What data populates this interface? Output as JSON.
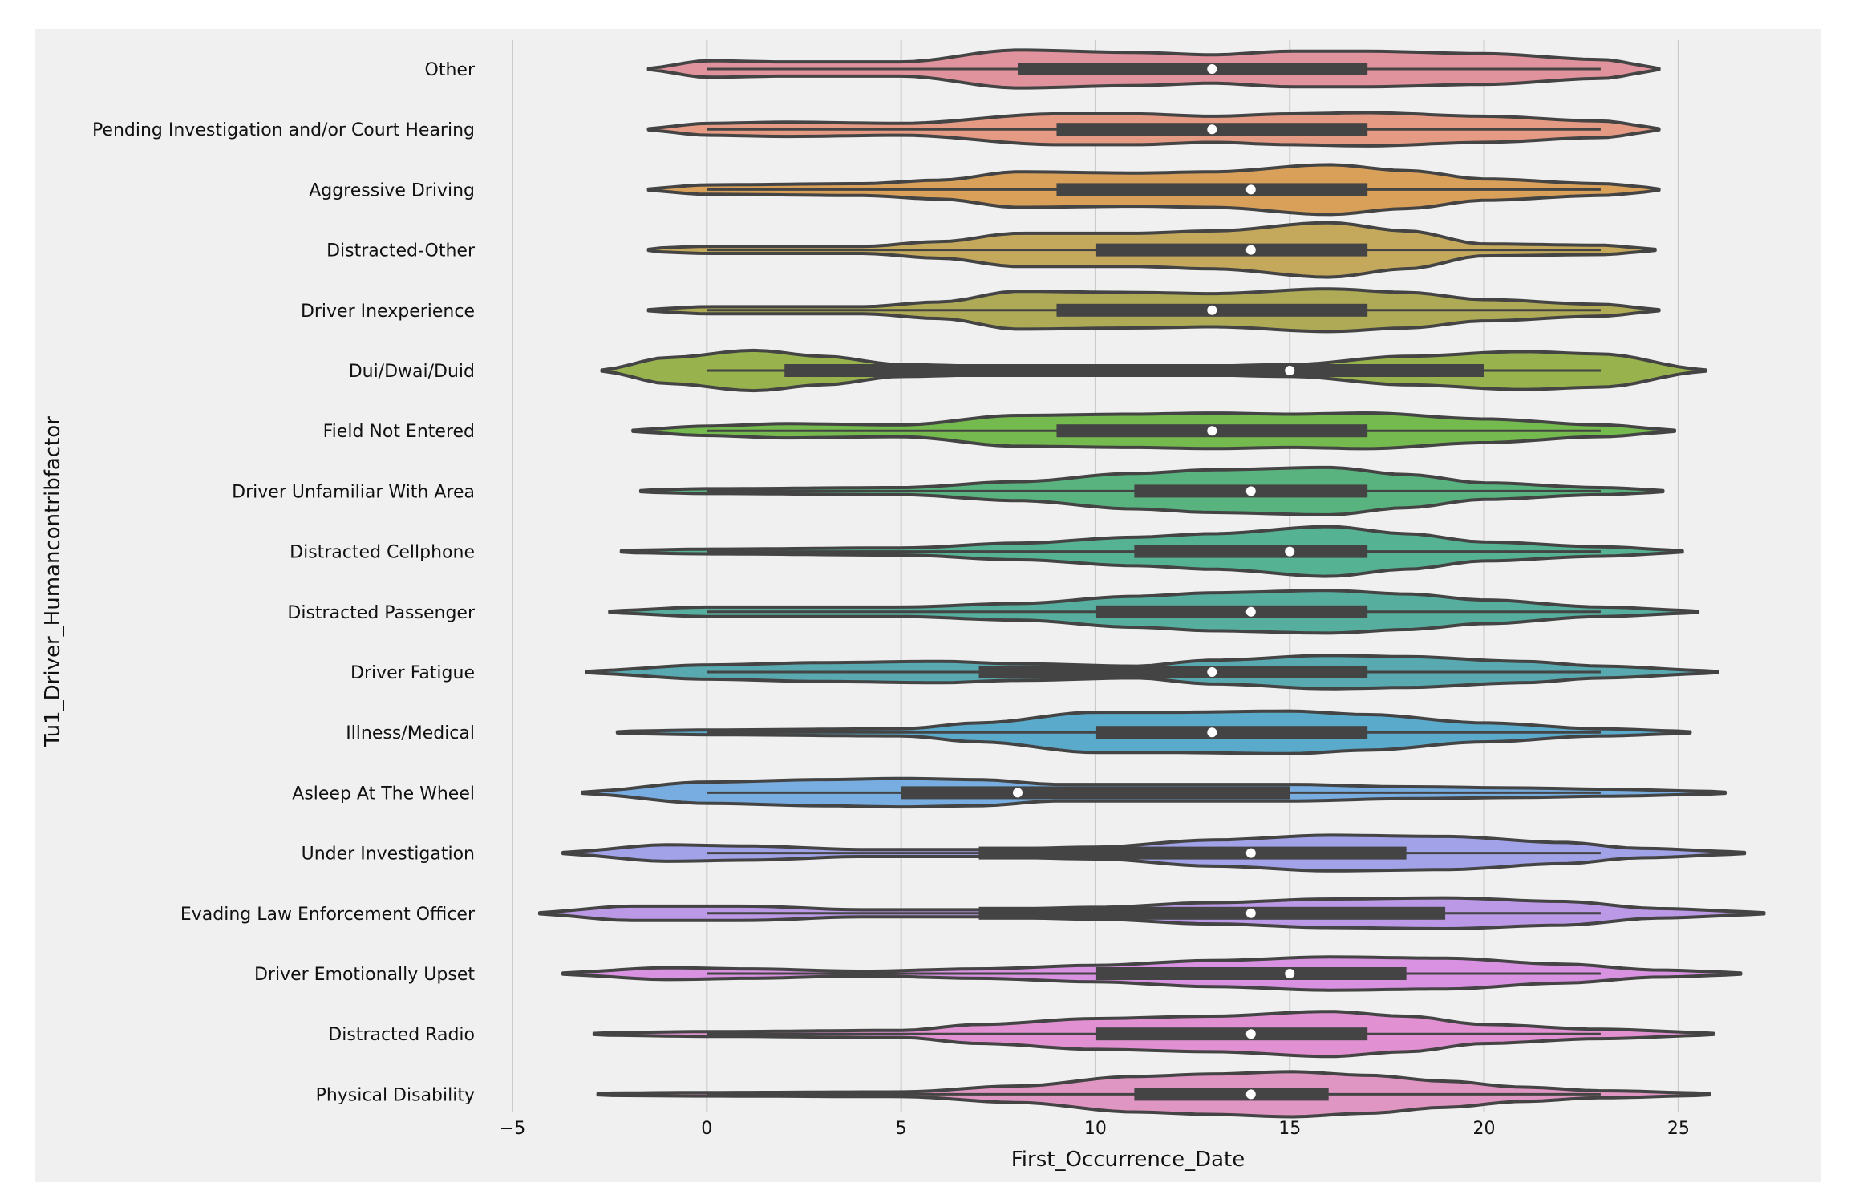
{
  "chart_data": {
    "type": "violin",
    "xlabel": "First_Occurrence_Date",
    "ylabel": "Tu1_Driver_Humancontribfactor",
    "xlim": [
      -5,
      27.5
    ],
    "xticks": [
      -5,
      0,
      5,
      10,
      15,
      20,
      25
    ],
    "xtick_labels": [
      "−5",
      "0",
      "5",
      "10",
      "15",
      "20",
      "25"
    ],
    "grid": "vertical",
    "orientation": "horizontal",
    "categories": [
      {
        "name": "Other",
        "color": "#e0939c",
        "min": -1.5,
        "max": 24.5,
        "q1": 8,
        "median": 13,
        "q3": 17,
        "whisker_low": 0,
        "whisker_high": 23,
        "density": [
          [
            -1.5,
            0.02
          ],
          [
            0,
            0.14
          ],
          [
            2,
            0.12
          ],
          [
            5,
            0.12
          ],
          [
            8,
            0.32
          ],
          [
            11,
            0.28
          ],
          [
            13,
            0.24
          ],
          [
            15,
            0.3
          ],
          [
            17,
            0.3
          ],
          [
            20,
            0.26
          ],
          [
            23,
            0.16
          ],
          [
            24.5,
            0.03
          ]
        ]
      },
      {
        "name": "Pending Investigation and/or Court Hearing",
        "color": "#e59a84",
        "min": -1.5,
        "max": 24.5,
        "q1": 9,
        "median": 13,
        "q3": 17,
        "whisker_low": 0,
        "whisker_high": 23,
        "density": [
          [
            -1.5,
            0.02
          ],
          [
            0,
            0.1
          ],
          [
            2,
            0.12
          ],
          [
            5,
            0.1
          ],
          [
            9,
            0.26
          ],
          [
            11,
            0.26
          ],
          [
            13,
            0.22
          ],
          [
            15,
            0.26
          ],
          [
            17,
            0.28
          ],
          [
            20,
            0.22
          ],
          [
            23,
            0.14
          ],
          [
            24.5,
            0.03
          ]
        ]
      },
      {
        "name": "Aggressive Driving",
        "color": "#d9a05a",
        "min": -1.5,
        "max": 24.5,
        "q1": 9,
        "median": 14,
        "q3": 17,
        "whisker_low": 0,
        "whisker_high": 23,
        "density": [
          [
            -1.5,
            0.02
          ],
          [
            0,
            0.08
          ],
          [
            4,
            0.1
          ],
          [
            6,
            0.16
          ],
          [
            8,
            0.3
          ],
          [
            11,
            0.28
          ],
          [
            13,
            0.3
          ],
          [
            16,
            0.42
          ],
          [
            18,
            0.32
          ],
          [
            20,
            0.18
          ],
          [
            23,
            0.1
          ],
          [
            24.5,
            0.03
          ]
        ]
      },
      {
        "name": "Distracted-Other",
        "color": "#c4a85c",
        "min": -1.5,
        "max": 24.4,
        "q1": 10,
        "median": 14,
        "q3": 17,
        "whisker_low": 0,
        "whisker_high": 23,
        "density": [
          [
            -1.5,
            0.03
          ],
          [
            0,
            0.06
          ],
          [
            4,
            0.06
          ],
          [
            6,
            0.14
          ],
          [
            8,
            0.28
          ],
          [
            11,
            0.28
          ],
          [
            13,
            0.32
          ],
          [
            16,
            0.46
          ],
          [
            18,
            0.32
          ],
          [
            20,
            0.1
          ],
          [
            23,
            0.08
          ],
          [
            24.4,
            0.02
          ]
        ]
      },
      {
        "name": "Driver Inexperience",
        "color": "#afaa56",
        "min": -1.5,
        "max": 24.5,
        "q1": 9,
        "median": 13,
        "q3": 17,
        "whisker_low": 0,
        "whisker_high": 23,
        "density": [
          [
            -1.5,
            0.02
          ],
          [
            0,
            0.06
          ],
          [
            4,
            0.06
          ],
          [
            6,
            0.14
          ],
          [
            8,
            0.32
          ],
          [
            11,
            0.3
          ],
          [
            13,
            0.28
          ],
          [
            16,
            0.36
          ],
          [
            18,
            0.3
          ],
          [
            20,
            0.18
          ],
          [
            23,
            0.1
          ],
          [
            24.5,
            0.02
          ]
        ]
      },
      {
        "name": "Dui/Dwai/Duid",
        "color": "#98b24e",
        "min": -2.7,
        "max": 25.7,
        "q1": 2,
        "median": 15,
        "q3": 20,
        "whisker_low": 0,
        "whisker_high": 23,
        "density": [
          [
            -2.7,
            0.02
          ],
          [
            -1,
            0.22
          ],
          [
            1.2,
            0.34
          ],
          [
            3,
            0.24
          ],
          [
            5,
            0.1
          ],
          [
            8,
            0.06
          ],
          [
            12,
            0.06
          ],
          [
            15,
            0.1
          ],
          [
            18,
            0.24
          ],
          [
            21,
            0.32
          ],
          [
            23,
            0.28
          ],
          [
            25.7,
            0.02
          ]
        ]
      },
      {
        "name": "Field Not Entered",
        "color": "#74ba4e",
        "min": -1.9,
        "max": 24.9,
        "q1": 9,
        "median": 13,
        "q3": 17,
        "whisker_low": 0,
        "whisker_high": 23,
        "density": [
          [
            -1.9,
            0.02
          ],
          [
            0,
            0.08
          ],
          [
            2,
            0.12
          ],
          [
            5,
            0.1
          ],
          [
            8,
            0.26
          ],
          [
            11,
            0.28
          ],
          [
            13,
            0.3
          ],
          [
            15,
            0.28
          ],
          [
            17,
            0.3
          ],
          [
            20,
            0.2
          ],
          [
            23,
            0.1
          ],
          [
            24.9,
            0.02
          ]
        ]
      },
      {
        "name": "Driver Unfamiliar With Area",
        "color": "#58b37e",
        "min": -1.7,
        "max": 24.6,
        "q1": 11,
        "median": 14,
        "q3": 17,
        "whisker_low": 0,
        "whisker_high": 23,
        "density": [
          [
            -1.7,
            0.02
          ],
          [
            0,
            0.04
          ],
          [
            5,
            0.06
          ],
          [
            8,
            0.16
          ],
          [
            11,
            0.3
          ],
          [
            13,
            0.36
          ],
          [
            16,
            0.4
          ],
          [
            18,
            0.28
          ],
          [
            20,
            0.14
          ],
          [
            23,
            0.06
          ],
          [
            24.6,
            0.02
          ]
        ]
      },
      {
        "name": "Distracted Cellphone",
        "color": "#55b394",
        "min": -2.2,
        "max": 25.1,
        "q1": 11,
        "median": 15,
        "q3": 17,
        "whisker_low": 0,
        "whisker_high": 23,
        "density": [
          [
            -2.2,
            0.02
          ],
          [
            0,
            0.04
          ],
          [
            5,
            0.06
          ],
          [
            8,
            0.14
          ],
          [
            11,
            0.24
          ],
          [
            13,
            0.3
          ],
          [
            16,
            0.42
          ],
          [
            18,
            0.3
          ],
          [
            20,
            0.16
          ],
          [
            23,
            0.08
          ],
          [
            25.1,
            0.02
          ]
        ]
      },
      {
        "name": "Distracted Passenger",
        "color": "#56ae9e",
        "min": -2.5,
        "max": 25.5,
        "q1": 10,
        "median": 14,
        "q3": 17,
        "whisker_low": 0,
        "whisker_high": 23,
        "density": [
          [
            -2.5,
            0.02
          ],
          [
            0,
            0.08
          ],
          [
            5,
            0.08
          ],
          [
            8,
            0.14
          ],
          [
            11,
            0.26
          ],
          [
            13,
            0.32
          ],
          [
            16,
            0.36
          ],
          [
            18,
            0.3
          ],
          [
            20,
            0.2
          ],
          [
            23,
            0.08
          ],
          [
            25.5,
            0.02
          ]
        ]
      },
      {
        "name": "Driver Fatigue",
        "color": "#58aab0",
        "min": -3.1,
        "max": 26.0,
        "q1": 7,
        "median": 13,
        "q3": 17,
        "whisker_low": 0,
        "whisker_high": 23,
        "density": [
          [
            -3.1,
            0.02
          ],
          [
            0,
            0.12
          ],
          [
            3,
            0.16
          ],
          [
            6,
            0.18
          ],
          [
            8,
            0.14
          ],
          [
            11,
            0.1
          ],
          [
            13,
            0.2
          ],
          [
            16,
            0.28
          ],
          [
            18,
            0.26
          ],
          [
            21,
            0.18
          ],
          [
            23,
            0.1
          ],
          [
            26,
            0.02
          ]
        ]
      },
      {
        "name": "Illness/Medical",
        "color": "#5aaacb",
        "min": -2.3,
        "max": 25.3,
        "q1": 10,
        "median": 13,
        "q3": 17,
        "whisker_low": 0,
        "whisker_high": 23,
        "density": [
          [
            -2.3,
            0.02
          ],
          [
            0,
            0.04
          ],
          [
            5,
            0.06
          ],
          [
            7,
            0.16
          ],
          [
            10,
            0.34
          ],
          [
            12,
            0.34
          ],
          [
            15,
            0.36
          ],
          [
            17,
            0.3
          ],
          [
            20,
            0.16
          ],
          [
            23,
            0.06
          ],
          [
            25.3,
            0.02
          ]
        ]
      },
      {
        "name": "Asleep At The Wheel",
        "color": "#77ade0",
        "min": -3.2,
        "max": 26.2,
        "q1": 5,
        "median": 8,
        "q3": 15,
        "whisker_low": 0,
        "whisker_high": 23,
        "density": [
          [
            -3.2,
            0.02
          ],
          [
            0,
            0.18
          ],
          [
            3,
            0.22
          ],
          [
            5,
            0.24
          ],
          [
            7,
            0.22
          ],
          [
            9,
            0.14
          ],
          [
            12,
            0.14
          ],
          [
            15,
            0.14
          ],
          [
            18,
            0.1
          ],
          [
            21,
            0.08
          ],
          [
            23,
            0.06
          ],
          [
            26.2,
            0.02
          ]
        ]
      },
      {
        "name": "Under Investigation",
        "color": "#a1a2e8",
        "min": -3.7,
        "max": 26.7,
        "q1": 7,
        "median": 14,
        "q3": 18,
        "whisker_low": 0,
        "whisker_high": 23,
        "density": [
          [
            -3.7,
            0.02
          ],
          [
            -1,
            0.14
          ],
          [
            1,
            0.12
          ],
          [
            4,
            0.06
          ],
          [
            7,
            0.06
          ],
          [
            10,
            0.1
          ],
          [
            13,
            0.22
          ],
          [
            16,
            0.3
          ],
          [
            19,
            0.28
          ],
          [
            22,
            0.18
          ],
          [
            24,
            0.08
          ],
          [
            26.7,
            0.02
          ]
        ]
      },
      {
        "name": "Evading Law Enforcement Officer",
        "color": "#bb99e6",
        "min": -4.3,
        "max": 27.2,
        "q1": 7,
        "median": 14,
        "q3": 19,
        "whisker_low": 0,
        "whisker_high": 23,
        "density": [
          [
            -4.3,
            0.02
          ],
          [
            -2,
            0.12
          ],
          [
            1,
            0.12
          ],
          [
            4,
            0.06
          ],
          [
            7,
            0.06
          ],
          [
            10,
            0.1
          ],
          [
            13,
            0.18
          ],
          [
            16,
            0.24
          ],
          [
            19,
            0.26
          ],
          [
            22,
            0.2
          ],
          [
            24.5,
            0.08
          ],
          [
            27.2,
            0.02
          ]
        ]
      },
      {
        "name": "Driver Emotionally Upset",
        "color": "#d991e2",
        "min": -3.7,
        "max": 26.6,
        "q1": 10,
        "median": 15,
        "q3": 18,
        "whisker_low": 0,
        "whisker_high": 23,
        "density": [
          [
            -3.7,
            0.02
          ],
          [
            -1,
            0.1
          ],
          [
            1,
            0.08
          ],
          [
            4,
            0.04
          ],
          [
            7,
            0.08
          ],
          [
            10,
            0.14
          ],
          [
            13,
            0.22
          ],
          [
            16,
            0.28
          ],
          [
            19,
            0.26
          ],
          [
            22,
            0.16
          ],
          [
            24.5,
            0.06
          ],
          [
            26.6,
            0.02
          ]
        ]
      },
      {
        "name": "Distracted Radio",
        "color": "#e191d2",
        "min": -2.9,
        "max": 25.9,
        "q1": 10,
        "median": 14,
        "q3": 17,
        "whisker_low": 0,
        "whisker_high": 23,
        "density": [
          [
            -2.9,
            0.02
          ],
          [
            0,
            0.04
          ],
          [
            5,
            0.06
          ],
          [
            7,
            0.16
          ],
          [
            10,
            0.26
          ],
          [
            13,
            0.3
          ],
          [
            16,
            0.38
          ],
          [
            18,
            0.3
          ],
          [
            20,
            0.16
          ],
          [
            23,
            0.08
          ],
          [
            25.9,
            0.02
          ]
        ]
      },
      {
        "name": "Physical Disability",
        "color": "#e096c2",
        "min": -2.8,
        "max": 25.8,
        "q1": 11,
        "median": 14,
        "q3": 16,
        "whisker_low": 0,
        "whisker_high": 23,
        "density": [
          [
            -2.8,
            0.02
          ],
          [
            0,
            0.03
          ],
          [
            5,
            0.04
          ],
          [
            8,
            0.14
          ],
          [
            11,
            0.3
          ],
          [
            13,
            0.34
          ],
          [
            15,
            0.38
          ],
          [
            17,
            0.32
          ],
          [
            19,
            0.22
          ],
          [
            21,
            0.12
          ],
          [
            23,
            0.06
          ],
          [
            25.8,
            0.02
          ]
        ]
      }
    ]
  }
}
